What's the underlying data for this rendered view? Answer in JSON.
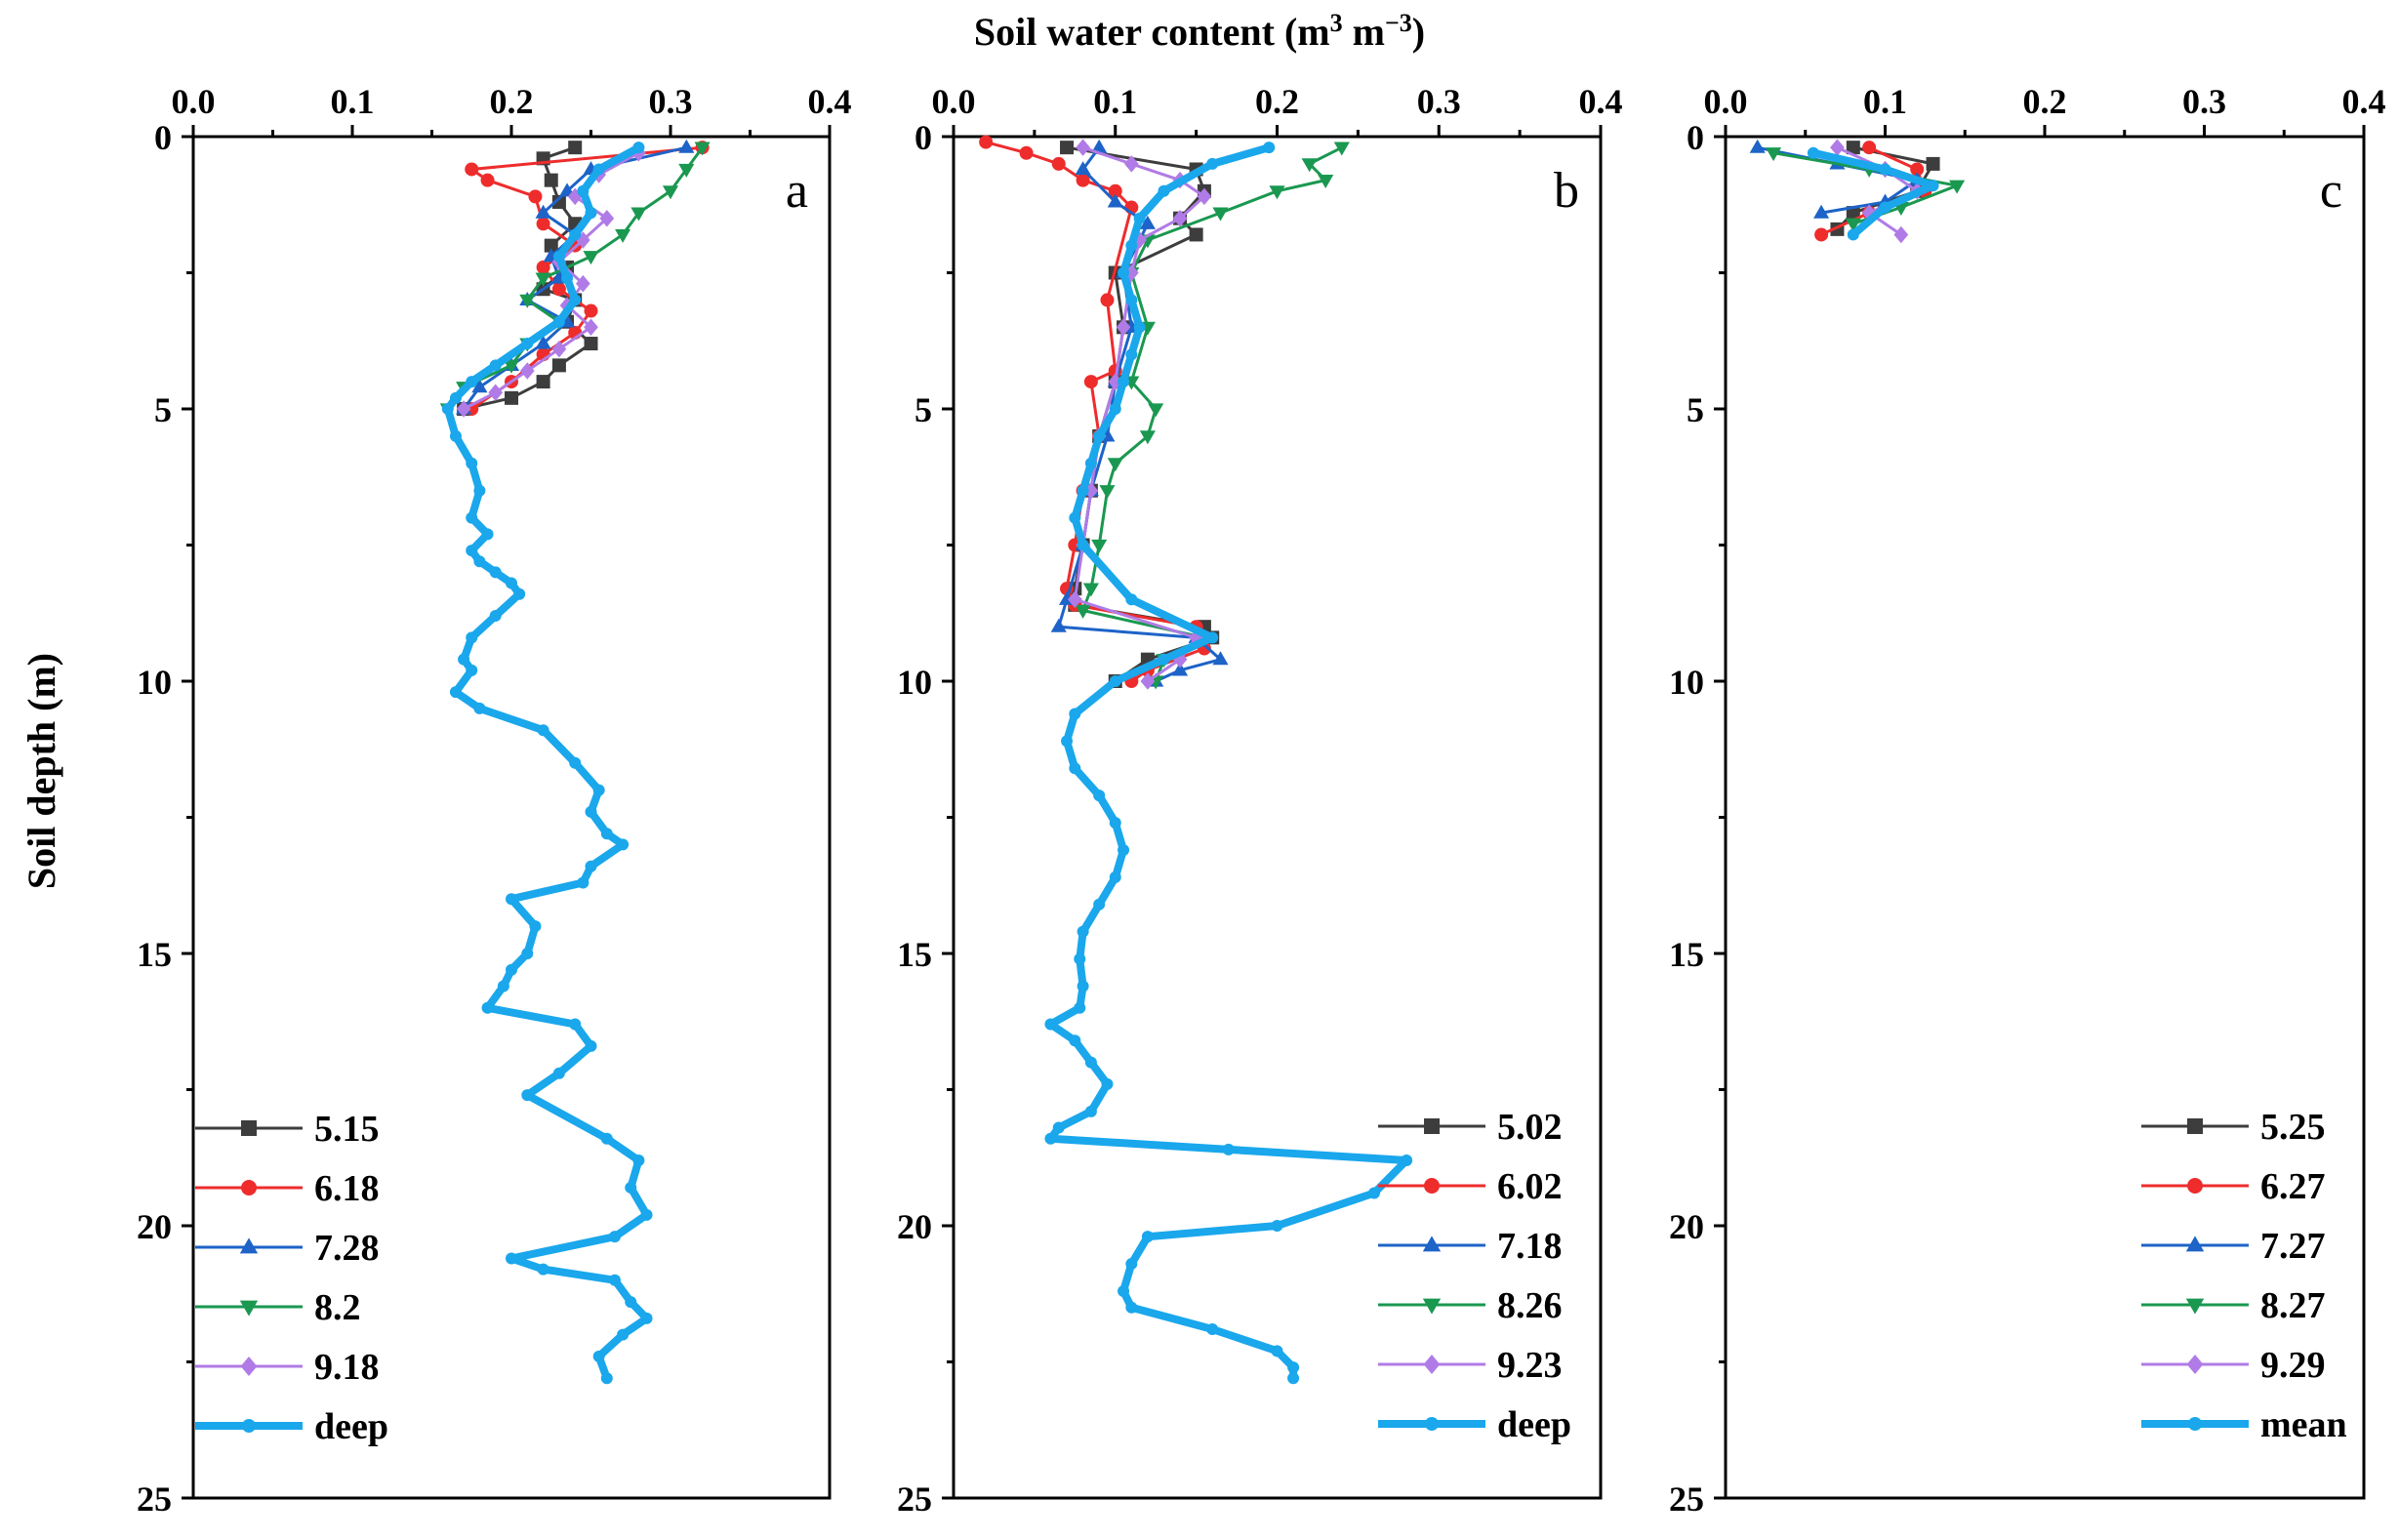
{
  "figure": {
    "top_axis_title_main": "Soil water content (m",
    "top_axis_title_sup1": "3",
    "top_axis_title_mid": " m",
    "top_axis_title_sup2": "−3",
    "top_axis_title_end": ")",
    "y_axis_title": "Soil depth (m)"
  },
  "chart_data": [
    {
      "type": "line",
      "panel_label": "a",
      "xlabel": "Soil water content (m3 m−3)",
      "ylabel": "Soil depth (m)",
      "xlim": [
        0,
        0.4
      ],
      "ylim": [
        0,
        25
      ],
      "y_inverted": true,
      "x_ticks": [
        "0.0",
        "0.1",
        "0.2",
        "0.3",
        "0.4"
      ],
      "y_ticks": [
        "0",
        "5",
        "10",
        "15",
        "20",
        "25"
      ],
      "grid": false,
      "legend_position": "bottom-left",
      "series": [
        {
          "name": "5.15",
          "color": "#3d3d3d",
          "marker": "square",
          "x": [
            0.24,
            0.22,
            0.225,
            0.23,
            0.24,
            0.225,
            0.235,
            0.22,
            0.24,
            0.235,
            0.25,
            0.23,
            0.22,
            0.2,
            0.17
          ],
          "y": [
            0.2,
            0.4,
            0.8,
            1.2,
            1.6,
            2.0,
            2.4,
            2.8,
            3.0,
            3.4,
            3.8,
            4.2,
            4.5,
            4.8,
            5.0
          ]
        },
        {
          "name": "6.18",
          "color": "#ee2c2c",
          "marker": "circle",
          "x": [
            0.32,
            0.175,
            0.185,
            0.215,
            0.22,
            0.24,
            0.22,
            0.23,
            0.25,
            0.24,
            0.22,
            0.2,
            0.175
          ],
          "y": [
            0.2,
            0.6,
            0.8,
            1.1,
            1.6,
            2.0,
            2.4,
            2.8,
            3.2,
            3.6,
            4.0,
            4.5,
            5.0
          ]
        },
        {
          "name": "7.28",
          "color": "#1d63c8",
          "marker": "triangle-up",
          "x": [
            0.31,
            0.25,
            0.235,
            0.22,
            0.24,
            0.225,
            0.23,
            0.21,
            0.235,
            0.22,
            0.2,
            0.18,
            0.17
          ],
          "y": [
            0.2,
            0.6,
            1.0,
            1.4,
            1.8,
            2.2,
            2.6,
            3.0,
            3.4,
            3.8,
            4.2,
            4.6,
            5.0
          ]
        },
        {
          "name": "8.2",
          "color": "#1a9850",
          "marker": "triangle-down",
          "x": [
            0.32,
            0.31,
            0.3,
            0.28,
            0.27,
            0.25,
            0.22,
            0.21,
            0.23,
            0.21,
            0.2,
            0.17,
            0.16
          ],
          "y": [
            0.2,
            0.6,
            1.0,
            1.4,
            1.8,
            2.2,
            2.6,
            3.0,
            3.4,
            3.8,
            4.2,
            4.6,
            5.0
          ]
        },
        {
          "name": "9.18",
          "color": "#b07be6",
          "marker": "diamond",
          "x": [
            0.28,
            0.255,
            0.24,
            0.26,
            0.245,
            0.23,
            0.245,
            0.235,
            0.25,
            0.23,
            0.21,
            0.19,
            0.17
          ],
          "y": [
            0.3,
            0.7,
            1.1,
            1.5,
            1.9,
            2.3,
            2.7,
            3.1,
            3.5,
            3.9,
            4.3,
            4.7,
            5.0
          ]
        },
        {
          "name": "deep",
          "color": "#1aa7ec",
          "marker": "circle",
          "thick": true,
          "x": [
            0.28,
            0.255,
            0.245,
            0.25,
            0.24,
            0.23,
            0.235,
            0.24,
            0.23,
            0.21,
            0.19,
            0.175,
            0.165,
            0.16,
            0.165,
            0.175,
            0.18,
            0.175,
            0.185,
            0.175,
            0.18,
            0.19,
            0.2,
            0.205,
            0.19,
            0.175,
            0.17,
            0.175,
            0.165,
            0.18,
            0.22,
            0.24,
            0.255,
            0.25,
            0.26,
            0.27,
            0.25,
            0.245,
            0.2,
            0.215,
            0.21,
            0.2,
            0.195,
            0.185,
            0.24,
            0.25,
            0.23,
            0.21,
            0.26,
            0.28,
            0.275,
            0.285,
            0.265,
            0.2,
            0.22,
            0.265,
            0.275,
            0.285,
            0.27,
            0.255,
            0.26
          ],
          "y": [
            0.2,
            0.6,
            1.0,
            1.4,
            1.8,
            2.2,
            2.6,
            3.0,
            3.4,
            3.8,
            4.2,
            4.5,
            4.8,
            5.0,
            5.5,
            6.0,
            6.5,
            7.0,
            7.3,
            7.6,
            7.8,
            8.0,
            8.2,
            8.4,
            8.8,
            9.2,
            9.6,
            9.8,
            10.2,
            10.5,
            10.9,
            11.5,
            12.0,
            12.4,
            12.8,
            13.0,
            13.4,
            13.7,
            14.0,
            14.5,
            15.0,
            15.3,
            15.6,
            16.0,
            16.3,
            16.7,
            17.2,
            17.6,
            18.4,
            18.8,
            19.3,
            19.8,
            20.2,
            20.6,
            20.8,
            21.0,
            21.4,
            21.7,
            22.0,
            22.4,
            22.8
          ]
        }
      ]
    },
    {
      "type": "line",
      "panel_label": "b",
      "xlim": [
        0,
        0.4
      ],
      "ylim": [
        0,
        25
      ],
      "y_inverted": true,
      "x_ticks": [
        "0.0",
        "0.1",
        "0.2",
        "0.3",
        "0.4"
      ],
      "y_ticks": [
        "0",
        "5",
        "10",
        "15",
        "20",
        "25"
      ],
      "grid": false,
      "legend_position": "bottom-right",
      "series": [
        {
          "name": "5.02",
          "color": "#3d3d3d",
          "marker": "square",
          "x": [
            0.07,
            0.15,
            0.155,
            0.14,
            0.15,
            0.1,
            0.105,
            0.1,
            0.09,
            0.085,
            0.08,
            0.075,
            0.075,
            0.155,
            0.16,
            0.12,
            0.1
          ],
          "y": [
            0.2,
            0.6,
            1.0,
            1.5,
            1.8,
            2.5,
            3.5,
            4.5,
            5.5,
            6.5,
            7.5,
            8.3,
            8.6,
            9.0,
            9.2,
            9.6,
            10.0
          ]
        },
        {
          "name": "6.02",
          "color": "#ee2c2c",
          "marker": "circle",
          "x": [
            0.02,
            0.045,
            0.065,
            0.08,
            0.1,
            0.11,
            0.095,
            0.1,
            0.085,
            0.09,
            0.08,
            0.075,
            0.07,
            0.075,
            0.15,
            0.155,
            0.12,
            0.11
          ],
          "y": [
            0.1,
            0.3,
            0.5,
            0.8,
            1.0,
            1.3,
            3.0,
            4.3,
            4.5,
            5.5,
            6.5,
            7.5,
            8.3,
            8.6,
            9.0,
            9.4,
            9.8,
            10.0
          ]
        },
        {
          "name": "7.18",
          "color": "#1d63c8",
          "marker": "triangle-up",
          "x": [
            0.09,
            0.08,
            0.1,
            0.12,
            0.105,
            0.11,
            0.1,
            0.095,
            0.085,
            0.08,
            0.07,
            0.065,
            0.15,
            0.165,
            0.14,
            0.125
          ],
          "y": [
            0.2,
            0.6,
            1.2,
            1.6,
            2.5,
            3.5,
            4.5,
            5.5,
            6.5,
            7.5,
            8.5,
            9.0,
            9.2,
            9.6,
            9.8,
            10.0
          ]
        },
        {
          "name": "8.26",
          "color": "#1a9850",
          "marker": "triangle-down",
          "x": [
            0.24,
            0.22,
            0.23,
            0.2,
            0.165,
            0.12,
            0.11,
            0.12,
            0.11,
            0.125,
            0.12,
            0.1,
            0.095,
            0.09,
            0.085,
            0.08,
            0.155,
            0.13,
            0.125
          ],
          "y": [
            0.2,
            0.5,
            0.8,
            1.0,
            1.4,
            1.9,
            2.5,
            3.5,
            4.5,
            5.0,
            5.5,
            6.0,
            6.5,
            7.5,
            8.3,
            8.7,
            9.2,
            9.6,
            10.0
          ]
        },
        {
          "name": "9.23",
          "color": "#b07be6",
          "marker": "diamond",
          "x": [
            0.08,
            0.11,
            0.14,
            0.155,
            0.14,
            0.115,
            0.11,
            0.105,
            0.1,
            0.09,
            0.085,
            0.08,
            0.075,
            0.15,
            0.14,
            0.12
          ],
          "y": [
            0.2,
            0.5,
            0.8,
            1.1,
            1.5,
            1.9,
            2.5,
            3.5,
            4.5,
            5.5,
            6.5,
            7.5,
            8.5,
            9.2,
            9.6,
            10.0
          ]
        },
        {
          "name": "deep",
          "color": "#1aa7ec",
          "marker": "circle",
          "thick": true,
          "x": [
            0.195,
            0.16,
            0.13,
            0.115,
            0.11,
            0.105,
            0.11,
            0.115,
            0.11,
            0.105,
            0.1,
            0.09,
            0.085,
            0.08,
            0.075,
            0.08,
            0.11,
            0.16,
            0.13,
            0.1,
            0.075,
            0.07,
            0.075,
            0.09,
            0.1,
            0.105,
            0.1,
            0.09,
            0.08,
            0.078,
            0.08,
            0.078,
            0.06,
            0.075,
            0.085,
            0.095,
            0.085,
            0.065,
            0.06,
            0.17,
            0.28,
            0.26,
            0.2,
            0.12,
            0.11,
            0.105,
            0.11,
            0.16,
            0.2,
            0.21,
            0.21
          ],
          "y": [
            0.2,
            0.5,
            1.0,
            1.5,
            2.0,
            2.5,
            3.0,
            3.5,
            4.0,
            4.5,
            5.0,
            5.5,
            6.0,
            6.5,
            7.0,
            7.5,
            8.5,
            9.2,
            9.6,
            10.0,
            10.6,
            11.1,
            11.6,
            12.1,
            12.6,
            13.1,
            13.6,
            14.1,
            14.6,
            15.1,
            15.6,
            16.0,
            16.3,
            16.6,
            17.0,
            17.4,
            17.9,
            18.2,
            18.4,
            18.6,
            18.8,
            19.4,
            20.0,
            20.2,
            20.7,
            21.2,
            21.5,
            21.9,
            22.3,
            22.6,
            22.8
          ]
        }
      ]
    },
    {
      "type": "line",
      "panel_label": "c",
      "xlim": [
        0,
        0.4
      ],
      "ylim": [
        0,
        25
      ],
      "y_inverted": true,
      "x_ticks": [
        "0.0",
        "0.1",
        "0.2",
        "0.3",
        "0.4"
      ],
      "y_ticks": [
        "0",
        "5",
        "10",
        "15",
        "20",
        "25"
      ],
      "grid": false,
      "legend_position": "bottom-right",
      "series": [
        {
          "name": "5.25",
          "color": "#3d3d3d",
          "marker": "square",
          "x": [
            0.08,
            0.13,
            0.12,
            0.08,
            0.07
          ],
          "y": [
            0.2,
            0.5,
            1.0,
            1.4,
            1.7
          ]
        },
        {
          "name": "6.27",
          "color": "#ee2c2c",
          "marker": "circle",
          "x": [
            0.09,
            0.12,
            0.125,
            0.09,
            0.06
          ],
          "y": [
            0.2,
            0.6,
            1.0,
            1.4,
            1.8
          ]
        },
        {
          "name": "7.27",
          "color": "#1d63c8",
          "marker": "triangle-up",
          "x": [
            0.02,
            0.07,
            0.12,
            0.1,
            0.06
          ],
          "y": [
            0.2,
            0.5,
            0.8,
            1.2,
            1.4
          ]
        },
        {
          "name": "8.27",
          "color": "#1a9850",
          "marker": "triangle-down",
          "x": [
            0.03,
            0.09,
            0.145,
            0.11,
            0.08
          ],
          "y": [
            0.3,
            0.6,
            0.9,
            1.3,
            1.6
          ]
        },
        {
          "name": "9.29",
          "color": "#b07be6",
          "marker": "diamond",
          "x": [
            0.07,
            0.1,
            0.12,
            0.09,
            0.11
          ],
          "y": [
            0.2,
            0.6,
            1.0,
            1.4,
            1.8
          ]
        },
        {
          "name": "mean",
          "color": "#1aa7ec",
          "marker": "circle",
          "thick": true,
          "x": [
            0.055,
            0.1,
            0.13,
            0.1,
            0.08
          ],
          "y": [
            0.3,
            0.6,
            0.9,
            1.3,
            1.8
          ]
        }
      ]
    }
  ]
}
